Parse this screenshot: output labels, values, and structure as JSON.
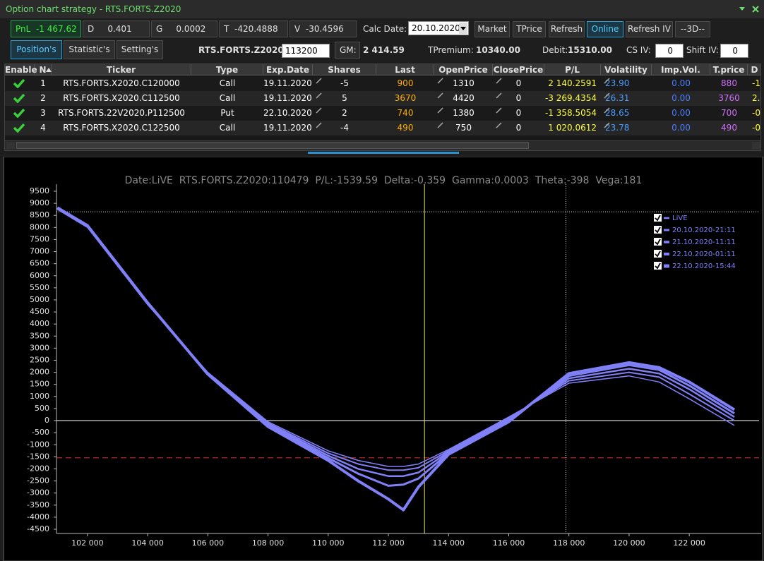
{
  "window_title": "Option chart strategy - RTS.FORTS.Z2020",
  "stats": {
    "pnl_label": "PnL",
    "pnl": "-1 467.62",
    "d_label": "D",
    "d": "0.401",
    "g_label": "G",
    "g": "0.0002",
    "t_label": "T",
    "t": "-420.4888",
    "v_label": "V",
    "v": "-30.4596"
  },
  "calc_date_label": "Calc Date:",
  "calc_date": "20.10.2020",
  "buttons": [
    "Market",
    "TPrice",
    "Refresh",
    "Online",
    "Refresh IV",
    "--3D--"
  ],
  "tabs": [
    "Position's",
    "Statistic's",
    "Setting's"
  ],
  "info": {
    "underlying": "RTS.FORTS.Z2020",
    "price": "113200",
    "gm_label": "GM:",
    "gm": "2 414.59",
    "tpremium_label": "TPremium:",
    "tpremium": "10340.00",
    "debit_label": "Debit:",
    "debit": "15310.00",
    "cs_iv_label": "CS IV:",
    "cs_iv": "0",
    "shift_iv_label": "Shift IV:",
    "shift_iv": "0"
  },
  "table": {
    "columns": [
      "Enable",
      "N",
      "Ticker",
      "Type",
      "Exp.Date",
      "Shares",
      "Last",
      "OpenPrice",
      "ClosePrice",
      "P/L",
      "Volatility",
      "Imp.Vol.",
      "T.price",
      "D"
    ],
    "rows": [
      [
        "1",
        "RTS.FORTS.X2020.C120000",
        "Call",
        "19.11.2020",
        "-5",
        "900",
        "1310",
        "0",
        "2 140.2591",
        "23.90",
        "0.00",
        "880",
        "-1"
      ],
      [
        "2",
        "RTS.FORTS.X2020.C112500",
        "Call",
        "19.11.2020",
        "5",
        "3670",
        "4420",
        "0",
        "-3 269.4354",
        "26.31",
        "0.00",
        "3760",
        "2."
      ],
      [
        "3",
        "RTS.FORTS.22V2020.P112500",
        "Put",
        "22.10.2020",
        "2",
        "740",
        "1380",
        "0",
        "-1 358.5054",
        "28.65",
        "0.00",
        "700",
        "-0"
      ],
      [
        "4",
        "RTS.FORTS.X2020.C122500",
        "Call",
        "19.11.2020",
        "-4",
        "490",
        "750",
        "0",
        "1 020.0612",
        "23.78",
        "0.00",
        "490",
        "-0"
      ]
    ]
  },
  "chart_data": {
    "type": "line",
    "title": "Date:LiVE  RTS.FORTS.Z2020:110479  P/L:-1539.59  Delta:-0.359  Gamma:0.0003  Theta:-398  Vega:181",
    "x": [
      101000,
      102000,
      104000,
      106000,
      108000,
      110000,
      111000,
      112000,
      112500,
      113000,
      114000,
      116000,
      118000,
      120000,
      121000,
      122000,
      123500
    ],
    "series": [
      {
        "name": "LiVE",
        "color": "#8080f8",
        "width": 1.5,
        "values": [
          8750,
          8000,
          4800,
          2000,
          -50,
          -1250,
          -1650,
          -1900,
          -1900,
          -1800,
          -1200,
          150,
          1550,
          1850,
          1600,
          900,
          -200
        ]
      },
      {
        "name": "20.10.2020-21:11",
        "color": "#8080f8",
        "width": 2,
        "values": [
          8770,
          8020,
          4820,
          1980,
          -100,
          -1350,
          -1800,
          -2050,
          -2050,
          -1950,
          -1250,
          100,
          1650,
          2000,
          1800,
          1100,
          0
        ]
      },
      {
        "name": "21.10.2020-11:11",
        "color": "#8080f8",
        "width": 2.5,
        "values": [
          8790,
          8040,
          4840,
          1960,
          -150,
          -1450,
          -2000,
          -2300,
          -2300,
          -2150,
          -1300,
          50,
          1750,
          2150,
          1950,
          1300,
          150
        ]
      },
      {
        "name": "22.10.2020-01:11",
        "color": "#8080f8",
        "width": 3,
        "values": [
          8800,
          8060,
          4860,
          1940,
          -200,
          -1550,
          -2200,
          -2700,
          -2650,
          -2400,
          -1350,
          0,
          1850,
          2300,
          2100,
          1450,
          300
        ]
      },
      {
        "name": "22.10.2020-15:44",
        "color": "#8080f8",
        "width": 4,
        "values": [
          8820,
          8080,
          4880,
          1920,
          -250,
          -1650,
          -2500,
          -3250,
          -3700,
          -2750,
          -1400,
          -50,
          1950,
          2400,
          2200,
          1600,
          450
        ]
      }
    ],
    "xlim": [
      100970,
      124390
    ],
    "ylim": [
      -4500,
      9500
    ],
    "xticks": [
      {
        "value": 102000,
        "label": "102 000"
      },
      {
        "value": 104000,
        "label": "104 000"
      },
      {
        "value": 106000,
        "label": "106 000"
      },
      {
        "value": 108000,
        "label": "108 000"
      },
      {
        "value": 110000,
        "label": "110 000"
      },
      {
        "value": 112000,
        "label": "112 000"
      },
      {
        "value": 114000,
        "label": "114 000"
      },
      {
        "value": 116000,
        "label": "116 000"
      },
      {
        "value": 118000,
        "label": "118 000"
      },
      {
        "value": 120000,
        "label": "120 000"
      },
      {
        "value": 122000,
        "label": "122 000"
      }
    ],
    "yticks": [
      -4500,
      -4000,
      -3500,
      -3000,
      -2500,
      -2000,
      -1500,
      -1000,
      -500,
      0,
      500,
      1000,
      1500,
      2000,
      2500,
      3000,
      3500,
      4000,
      4500,
      5000,
      5500,
      6000,
      6500,
      7000,
      7500,
      8000,
      8500,
      9000,
      9500
    ],
    "grid": false,
    "legend": "top-right",
    "hlines": [
      {
        "value": 0,
        "color": "#ffffff",
        "style": "solid"
      },
      {
        "value": -1540,
        "color": "#e03030",
        "style": "dashed"
      },
      {
        "value": 8650,
        "color": "#dddddd",
        "style": "dotted"
      }
    ],
    "vlines": [
      {
        "value": 113200,
        "color": "#e8e070",
        "style": "solid"
      },
      {
        "value": 117900,
        "color": "#dddddd",
        "style": "dotted"
      }
    ]
  }
}
